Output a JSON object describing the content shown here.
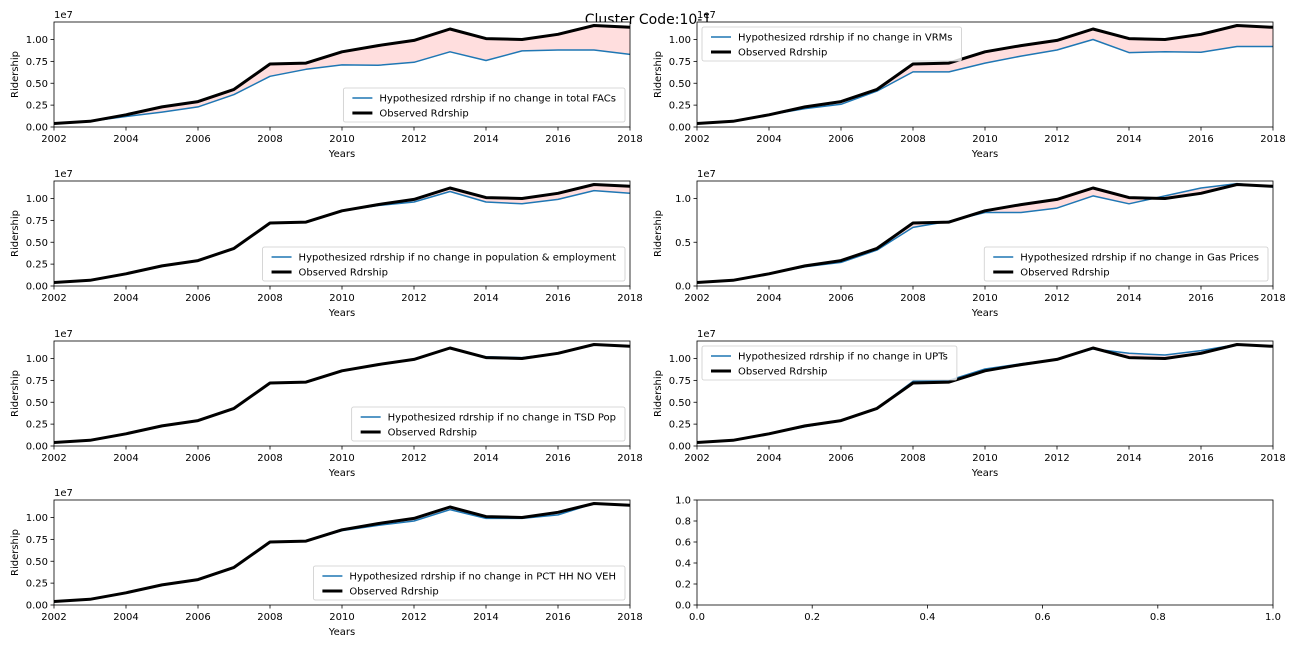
{
  "figure": {
    "suptitle": "Cluster Code:10-1"
  },
  "colors": {
    "hypothesized": "#1f77b4",
    "observed": "#000000",
    "fill": "#ffdede"
  },
  "chart_data": [
    {
      "type": "line",
      "xlabel": "Years",
      "ylabel": "Ridership",
      "offset_label": "1e7",
      "ylim": [
        0,
        12000000
      ],
      "yticks": [
        0,
        2500000,
        5000000,
        7500000,
        10000000
      ],
      "ytick_labels": [
        "0.00",
        "0.25",
        "0.50",
        "0.75",
        "1.00"
      ],
      "xlim": [
        2002,
        2018
      ],
      "xticks": [
        2002,
        2004,
        2006,
        2008,
        2010,
        2012,
        2014,
        2016,
        2018
      ],
      "legend_loc": "lower-right",
      "x": [
        2002,
        2003,
        2004,
        2005,
        2006,
        2007,
        2008,
        2009,
        2010,
        2011,
        2012,
        2013,
        2014,
        2015,
        2016,
        2017,
        2018
      ],
      "series": [
        {
          "name": "Hypothesized rdrship if no change in total FACs",
          "values": [
            400000,
            650000,
            1200000,
            1700000,
            2300000,
            3700000,
            5800000,
            6600000,
            7100000,
            7050000,
            7400000,
            8600000,
            7600000,
            8700000,
            8800000,
            8800000,
            8300000
          ]
        },
        {
          "name": "Observed Rdrship",
          "values": [
            400000,
            650000,
            1400000,
            2300000,
            2900000,
            4300000,
            7200000,
            7300000,
            8600000,
            9300000,
            9900000,
            11200000,
            10100000,
            10000000,
            10600000,
            11600000,
            11400000
          ]
        }
      ]
    },
    {
      "type": "line",
      "xlabel": "Years",
      "ylabel": "Ridership",
      "offset_label": "1e7",
      "ylim": [
        0,
        12000000
      ],
      "yticks": [
        0,
        2500000,
        5000000,
        7500000,
        10000000
      ],
      "ytick_labels": [
        "0.00",
        "0.25",
        "0.50",
        "0.75",
        "1.00"
      ],
      "xlim": [
        2002,
        2018
      ],
      "xticks": [
        2002,
        2004,
        2006,
        2008,
        2010,
        2012,
        2014,
        2016,
        2018
      ],
      "legend_loc": "upper-left",
      "x": [
        2002,
        2003,
        2004,
        2005,
        2006,
        2007,
        2008,
        2009,
        2010,
        2011,
        2012,
        2013,
        2014,
        2015,
        2016,
        2017,
        2018
      ],
      "series": [
        {
          "name": "Hypothesized rdrship if no change in VRMs",
          "values": [
            400000,
            650000,
            1400000,
            2100000,
            2600000,
            4100000,
            6300000,
            6300000,
            7300000,
            8100000,
            8800000,
            10000000,
            8500000,
            8600000,
            8550000,
            9200000,
            9200000
          ]
        },
        {
          "name": "Observed Rdrship",
          "values": [
            400000,
            650000,
            1400000,
            2300000,
            2900000,
            4300000,
            7200000,
            7300000,
            8600000,
            9300000,
            9900000,
            11200000,
            10100000,
            10000000,
            10600000,
            11600000,
            11400000
          ]
        }
      ]
    },
    {
      "type": "line",
      "xlabel": "Years",
      "ylabel": "Ridership",
      "offset_label": "1e7",
      "ylim": [
        0,
        12000000
      ],
      "yticks": [
        0,
        2500000,
        5000000,
        7500000,
        10000000
      ],
      "ytick_labels": [
        "0.00",
        "0.25",
        "0.50",
        "0.75",
        "1.00"
      ],
      "xlim": [
        2002,
        2018
      ],
      "xticks": [
        2002,
        2004,
        2006,
        2008,
        2010,
        2012,
        2014,
        2016,
        2018
      ],
      "legend_loc": "lower-right",
      "x": [
        2002,
        2003,
        2004,
        2005,
        2006,
        2007,
        2008,
        2009,
        2010,
        2011,
        2012,
        2013,
        2014,
        2015,
        2016,
        2017,
        2018
      ],
      "series": [
        {
          "name": "Hypothesized rdrship if no change in population & employment",
          "values": [
            400000,
            650000,
            1400000,
            2300000,
            2900000,
            4300000,
            7200000,
            7300000,
            8600000,
            9200000,
            9600000,
            10800000,
            9600000,
            9400000,
            9900000,
            10900000,
            10600000
          ]
        },
        {
          "name": "Observed Rdrship",
          "values": [
            400000,
            650000,
            1400000,
            2300000,
            2900000,
            4300000,
            7200000,
            7300000,
            8600000,
            9300000,
            9900000,
            11200000,
            10100000,
            10000000,
            10600000,
            11600000,
            11400000
          ]
        }
      ]
    },
    {
      "type": "line",
      "xlabel": "Years",
      "ylabel": "Ridership",
      "offset_label": "1e7",
      "ylim": [
        0,
        12000000
      ],
      "yticks": [
        0,
        5000000,
        10000000
      ],
      "ytick_labels": [
        "0.0",
        "0.5",
        "1.0"
      ],
      "xlim": [
        2002,
        2018
      ],
      "xticks": [
        2002,
        2004,
        2006,
        2008,
        2010,
        2012,
        2014,
        2016,
        2018
      ],
      "legend_loc": "lower-right",
      "x": [
        2002,
        2003,
        2004,
        2005,
        2006,
        2007,
        2008,
        2009,
        2010,
        2011,
        2012,
        2013,
        2014,
        2015,
        2016,
        2017,
        2018
      ],
      "series": [
        {
          "name": "Hypothesized rdrship if no change in Gas Prices",
          "values": [
            400000,
            650000,
            1400000,
            2200000,
            2700000,
            4100000,
            6700000,
            7400000,
            8400000,
            8400000,
            8900000,
            10300000,
            9400000,
            10300000,
            11200000,
            11700000,
            11300000
          ]
        },
        {
          "name": "Observed Rdrship",
          "values": [
            400000,
            650000,
            1400000,
            2300000,
            2900000,
            4300000,
            7200000,
            7300000,
            8600000,
            9300000,
            9900000,
            11200000,
            10100000,
            10000000,
            10600000,
            11600000,
            11400000
          ]
        }
      ]
    },
    {
      "type": "line",
      "xlabel": "Years",
      "ylabel": "Ridership",
      "offset_label": "1e7",
      "ylim": [
        0,
        12000000
      ],
      "yticks": [
        0,
        2500000,
        5000000,
        7500000,
        10000000
      ],
      "ytick_labels": [
        "0.00",
        "0.25",
        "0.50",
        "0.75",
        "1.00"
      ],
      "xlim": [
        2002,
        2018
      ],
      "xticks": [
        2002,
        2004,
        2006,
        2008,
        2010,
        2012,
        2014,
        2016,
        2018
      ],
      "legend_loc": "lower-right",
      "x": [
        2002,
        2003,
        2004,
        2005,
        2006,
        2007,
        2008,
        2009,
        2010,
        2011,
        2012,
        2013,
        2014,
        2015,
        2016,
        2017,
        2018
      ],
      "series": [
        {
          "name": "Hypothesized rdrship if no change in TSD Pop",
          "values": [
            400000,
            650000,
            1400000,
            2300000,
            2900000,
            4300000,
            7200000,
            7300000,
            8600000,
            9300000,
            9900000,
            11200000,
            10200000,
            10100000,
            10600000,
            11600000,
            11400000
          ]
        },
        {
          "name": "Observed Rdrship",
          "values": [
            400000,
            650000,
            1400000,
            2300000,
            2900000,
            4300000,
            7200000,
            7300000,
            8600000,
            9300000,
            9900000,
            11200000,
            10100000,
            10000000,
            10600000,
            11600000,
            11400000
          ]
        }
      ]
    },
    {
      "type": "line",
      "xlabel": "Years",
      "ylabel": "Ridership",
      "offset_label": "1e7",
      "ylim": [
        0,
        12000000
      ],
      "yticks": [
        0,
        2500000,
        5000000,
        7500000,
        10000000
      ],
      "ytick_labels": [
        "0.00",
        "0.25",
        "0.50",
        "0.75",
        "1.00"
      ],
      "xlim": [
        2002,
        2018
      ],
      "xticks": [
        2002,
        2004,
        2006,
        2008,
        2010,
        2012,
        2014,
        2016,
        2018
      ],
      "legend_loc": "upper-left",
      "x": [
        2002,
        2003,
        2004,
        2005,
        2006,
        2007,
        2008,
        2009,
        2010,
        2011,
        2012,
        2013,
        2014,
        2015,
        2016,
        2017,
        2018
      ],
      "series": [
        {
          "name": "Hypothesized rdrship if no change in UPTs",
          "values": [
            400000,
            650000,
            1400000,
            2200000,
            2900000,
            4300000,
            7400000,
            7500000,
            8800000,
            9400000,
            9900000,
            11100000,
            10600000,
            10400000,
            10900000,
            11600000,
            11400000
          ]
        },
        {
          "name": "Observed Rdrship",
          "values": [
            400000,
            650000,
            1400000,
            2300000,
            2900000,
            4300000,
            7200000,
            7300000,
            8600000,
            9300000,
            9900000,
            11200000,
            10100000,
            10000000,
            10600000,
            11600000,
            11400000
          ]
        }
      ]
    },
    {
      "type": "line",
      "xlabel": "Years",
      "ylabel": "Ridership",
      "offset_label": "1e7",
      "ylim": [
        0,
        12000000
      ],
      "yticks": [
        0,
        2500000,
        5000000,
        7500000,
        10000000
      ],
      "ytick_labels": [
        "0.00",
        "0.25",
        "0.50",
        "0.75",
        "1.00"
      ],
      "xlim": [
        2002,
        2018
      ],
      "xticks": [
        2002,
        2004,
        2006,
        2008,
        2010,
        2012,
        2014,
        2016,
        2018
      ],
      "legend_loc": "lower-right",
      "x": [
        2002,
        2003,
        2004,
        2005,
        2006,
        2007,
        2008,
        2009,
        2010,
        2011,
        2012,
        2013,
        2014,
        2015,
        2016,
        2017,
        2018
      ],
      "series": [
        {
          "name": "Hypothesized rdrship if no change in PCT HH NO VEH",
          "values": [
            400000,
            650000,
            1400000,
            2300000,
            2900000,
            4300000,
            7200000,
            7300000,
            8500000,
            9100000,
            9600000,
            10900000,
            9900000,
            9900000,
            10300000,
            11600000,
            11400000
          ]
        },
        {
          "name": "Observed Rdrship",
          "values": [
            400000,
            650000,
            1400000,
            2300000,
            2900000,
            4300000,
            7200000,
            7300000,
            8600000,
            9300000,
            9900000,
            11200000,
            10100000,
            10000000,
            10600000,
            11600000,
            11400000
          ]
        }
      ]
    },
    {
      "type": "line",
      "xlim": [
        0.0,
        1.0
      ],
      "ylim": [
        0.0,
        1.0
      ],
      "xticks": [
        0.0,
        0.2,
        0.4,
        0.6,
        0.8,
        1.0
      ],
      "xtick_labels": [
        "0.0",
        "0.2",
        "0.4",
        "0.6",
        "0.8",
        "1.0"
      ],
      "yticks": [
        0.0,
        0.2,
        0.4,
        0.6,
        0.8,
        1.0
      ],
      "ytick_labels": [
        "0.0",
        "0.2",
        "0.4",
        "0.6",
        "0.8",
        "1.0"
      ],
      "series": []
    }
  ]
}
